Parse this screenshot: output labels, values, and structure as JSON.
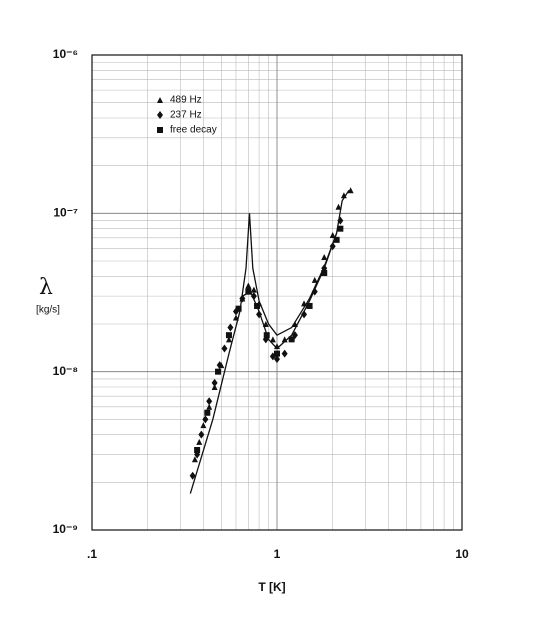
{
  "chart_data": {
    "type": "scatter",
    "log_x": true,
    "log_y": true,
    "grid": true,
    "minor_grid": true,
    "x_label": "T [K]",
    "y_label": "λ",
    "y_unit": "[kg/s]",
    "legend": "upper left",
    "xlim": [
      0.1,
      10
    ],
    "xticks": [
      {
        "value": 0.1,
        "label": ".1"
      },
      1,
      10
    ],
    "ylim": [
      1e-09,
      1e-06
    ],
    "yticks": [
      {
        "value": 1e-09,
        "label": "10⁻⁹"
      },
      {
        "value": 1e-08,
        "label": "10⁻⁸"
      },
      {
        "value": 1e-07,
        "label": "10⁻⁷"
      },
      {
        "value": 1e-06,
        "label": "10⁻⁶"
      }
    ],
    "series": [
      {
        "name": "489 Hz",
        "marker": "triangle",
        "color": "#111111",
        "x": [
          0.36,
          0.38,
          0.4,
          0.43,
          0.46,
          0.5,
          0.55,
          0.6,
          0.65,
          0.7,
          0.75,
          0.8,
          0.87,
          0.95,
          1.0,
          1.1,
          1.25,
          1.4,
          1.6,
          1.8,
          2.0,
          2.15,
          2.3,
          2.5
        ],
        "values": [
          2.8e-09,
          3.6e-09,
          4.6e-09,
          6e-09,
          8e-09,
          1.1e-08,
          1.6e-08,
          2.2e-08,
          2.9e-08,
          3.5e-08,
          3.3e-08,
          2.7e-08,
          2e-08,
          1.6e-08,
          1.45e-08,
          1.6e-08,
          2e-08,
          2.7e-08,
          3.8e-08,
          5.3e-08,
          7.3e-08,
          1.1e-07,
          1.3e-07,
          1.4e-07
        ]
      },
      {
        "name": "237 Hz",
        "marker": "diamond",
        "color": "#111111",
        "x": [
          0.35,
          0.37,
          0.39,
          0.41,
          0.43,
          0.46,
          0.49,
          0.52,
          0.56,
          0.6,
          0.65,
          0.7,
          0.75,
          0.8,
          0.87,
          0.95,
          1.0,
          1.1,
          1.25,
          1.4,
          1.6,
          1.8,
          2.0,
          2.2
        ],
        "values": [
          2.2e-09,
          3e-09,
          4e-09,
          5e-09,
          6.5e-09,
          8.5e-09,
          1.1e-08,
          1.4e-08,
          1.9e-08,
          2.4e-08,
          2.9e-08,
          3.3e-08,
          3e-08,
          2.3e-08,
          1.6e-08,
          1.25e-08,
          1.2e-08,
          1.3e-08,
          1.7e-08,
          2.3e-08,
          3.2e-08,
          4.5e-08,
          6.2e-08,
          9e-08
        ]
      },
      {
        "name": "free decay",
        "marker": "square",
        "color": "#111111",
        "x": [
          0.37,
          0.42,
          0.48,
          0.55,
          0.62,
          0.7,
          0.78,
          0.88,
          1.0,
          1.2,
          1.5,
          1.8,
          2.1,
          2.2
        ],
        "values": [
          3.2e-09,
          5.5e-09,
          1e-08,
          1.7e-08,
          2.5e-08,
          3.2e-08,
          2.6e-08,
          1.7e-08,
          1.3e-08,
          1.6e-08,
          2.6e-08,
          4.2e-08,
          6.8e-08,
          8e-08
        ]
      },
      {
        "style": "line",
        "color": "#111111",
        "x": [
          0.34,
          0.45,
          0.55,
          0.63,
          0.68,
          0.71,
          0.74,
          0.8,
          0.9,
          1.0,
          1.2,
          1.5,
          1.8,
          2.1
        ],
        "values": [
          1.7e-09,
          5e-09,
          1.3e-08,
          2.4e-08,
          4.5e-08,
          1e-07,
          4.5e-08,
          2.8e-08,
          2e-08,
          1.7e-08,
          1.9e-08,
          2.9e-08,
          4.6e-08,
          7.5e-08
        ]
      },
      {
        "style": "line",
        "color": "#111111",
        "x": [
          0.65,
          0.72,
          0.8,
          0.9,
          1.0,
          1.2,
          1.5,
          1.8,
          2.1,
          2.25,
          2.45
        ],
        "values": [
          3e-08,
          3.2e-08,
          2.4e-08,
          1.6e-08,
          1.4e-08,
          1.7e-08,
          2.8e-08,
          4.5e-08,
          7.5e-08,
          1.2e-07,
          1.4e-07
        ]
      }
    ]
  }
}
